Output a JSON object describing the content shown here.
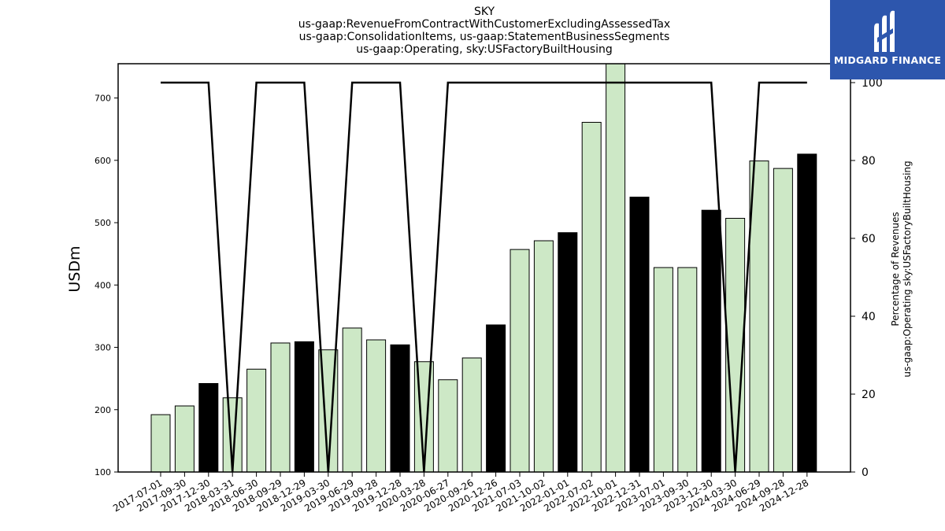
{
  "title_lines": [
    "SKY",
    "us-gaap:RevenueFromContractWithCustomerExcludingAssessedTax",
    "us-gaap:ConsolidationItems, us-gaap:StatementBusinessSegments",
    "us-gaap:Operating, sky:USFactoryBuiltHousing"
  ],
  "logo": {
    "text": "MIDGARD FINANCE",
    "color": "#2d56ad"
  },
  "chart_data": {
    "type": "bar",
    "categories": [
      "2017-07-01",
      "2017-09-30",
      "2017-12-30",
      "2018-03-31",
      "2018-06-30",
      "2018-09-29",
      "2018-12-29",
      "2019-03-30",
      "2019-06-29",
      "2019-09-28",
      "2019-12-28",
      "2020-03-28",
      "2020-06-27",
      "2020-09-26",
      "2020-12-26",
      "2021-07-03",
      "2021-10-02",
      "2022-01-01",
      "2022-07-02",
      "2022-10-01",
      "2022-12-31",
      "2023-07-01",
      "2023-09-30",
      "2023-12-30",
      "2024-03-30",
      "2024-06-29",
      "2024-09-28",
      "2024-12-28"
    ],
    "series": [
      {
        "axis": "left",
        "type": "bar",
        "values": [
          192,
          206,
          242,
          219,
          265,
          307,
          309,
          296,
          331,
          312,
          304,
          277,
          248,
          283,
          336,
          457,
          471,
          484,
          661,
          756,
          541,
          428,
          428,
          520,
          507,
          599,
          587,
          610
        ],
        "colors": [
          "#cde8c6",
          "#cde8c6",
          "#000000",
          "#cde8c6",
          "#cde8c6",
          "#cde8c6",
          "#000000",
          "#cde8c6",
          "#cde8c6",
          "#cde8c6",
          "#000000",
          "#cde8c6",
          "#cde8c6",
          "#cde8c6",
          "#000000",
          "#cde8c6",
          "#cde8c6",
          "#000000",
          "#cde8c6",
          "#cde8c6",
          "#000000",
          "#cde8c6",
          "#cde8c6",
          "#000000",
          "#cde8c6",
          "#cde8c6",
          "#cde8c6",
          "#000000"
        ]
      },
      {
        "axis": "right",
        "type": "line",
        "values": [
          100,
          100,
          100,
          0,
          100,
          100,
          100,
          0,
          100,
          100,
          100,
          0,
          100,
          100,
          100,
          100,
          100,
          100,
          100,
          100,
          100,
          100,
          100,
          100,
          0,
          100,
          100,
          100
        ],
        "color": "#000000"
      }
    ],
    "ylabel": "USDm",
    "y2label_lines": [
      "Percentage of Revenues",
      "us-gaap:Operating sky:USFactoryBuiltHousing"
    ],
    "ylim": [
      100,
      755
    ],
    "y2lim": [
      0,
      100
    ],
    "yticks": [
      100,
      200,
      300,
      400,
      500,
      600,
      700
    ],
    "y2ticks": [
      0,
      20,
      40,
      60,
      80,
      100
    ],
    "grid": false
  }
}
